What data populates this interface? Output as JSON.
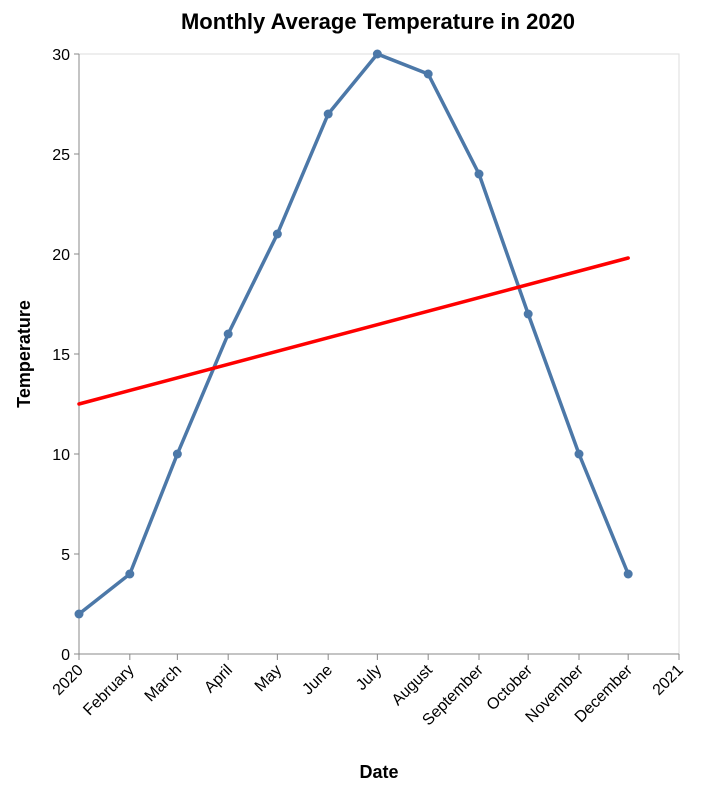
{
  "chart_data": {
    "type": "line",
    "title": "Monthly Average Temperature in 2020",
    "xlabel": "Date",
    "ylabel": "Temperature",
    "ylim": [
      0,
      30
    ],
    "y_ticks": [
      0,
      5,
      10,
      15,
      20,
      25,
      30
    ],
    "x_ticks": [
      "2020",
      "February",
      "March",
      "April",
      "May",
      "June",
      "July",
      "August",
      "September",
      "October",
      "November",
      "December",
      "2021"
    ],
    "x_domain": [
      "2020-01-01",
      "2021-01-01"
    ],
    "grid": false,
    "series": [
      {
        "color": "#4c78a8",
        "points": [
          {
            "x": "2020-01-01",
            "y": 2
          },
          {
            "x": "2020-02-01",
            "y": 4
          },
          {
            "x": "2020-03-01",
            "y": 10
          },
          {
            "x": "2020-04-01",
            "y": 16
          },
          {
            "x": "2020-05-01",
            "y": 21
          },
          {
            "x": "2020-06-01",
            "y": 27
          },
          {
            "x": "2020-07-01",
            "y": 30
          },
          {
            "x": "2020-08-01",
            "y": 29
          },
          {
            "x": "2020-09-01",
            "y": 24
          },
          {
            "x": "2020-10-01",
            "y": 17
          },
          {
            "x": "2020-11-01",
            "y": 10
          },
          {
            "x": "2020-12-01",
            "y": 4
          }
        ]
      },
      {
        "type": "line",
        "color": "#ff0000",
        "points": [
          {
            "x": "2020-01-01",
            "y": 12.5
          },
          {
            "x": "2020-12-01",
            "y": 19.8
          }
        ]
      }
    ]
  }
}
